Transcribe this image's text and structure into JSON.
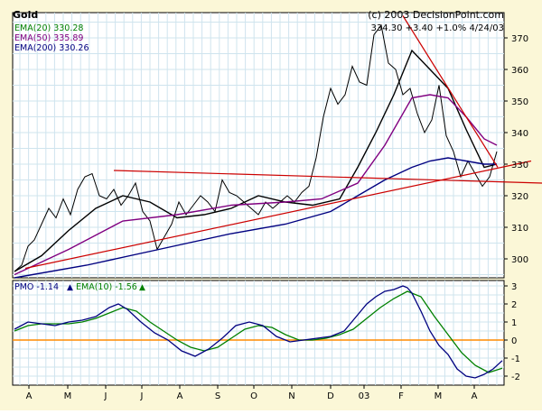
{
  "chart_data": [
    {
      "type": "line",
      "title": "Gold",
      "copyright": "(c) 2003 DecisionPoint.com",
      "quote": "334.30  +3.40  +1.0%  4/24/03",
      "legend": [
        "EMA(20) 330.28",
        "EMA(50) 335.89",
        "EMA(200) 330.26"
      ],
      "x_tick_labels": [
        "A",
        "M",
        "J",
        "J",
        "A",
        "S",
        "O",
        "N",
        "D",
        "03",
        "F",
        "M",
        "A"
      ],
      "y_ticks": [
        300,
        310,
        320,
        330,
        340,
        350,
        360,
        370
      ],
      "ylim": [
        294,
        378
      ],
      "series": [
        {
          "name": "Gold",
          "color": "#000000",
          "x": [
            0,
            8,
            15,
            22,
            30,
            38,
            46,
            54,
            62,
            70,
            78,
            86,
            94,
            102,
            110,
            118,
            126,
            134,
            142,
            150,
            158,
            166,
            174,
            182,
            190,
            198,
            206,
            214,
            222,
            230,
            238,
            246,
            254,
            262,
            270,
            278,
            286,
            294,
            302,
            310,
            318,
            326,
            334,
            342,
            350,
            358,
            366,
            374,
            382,
            390,
            398,
            406,
            414,
            422,
            430,
            438,
            446,
            454,
            462,
            470,
            478,
            486,
            494,
            502,
            510,
            518,
            526,
            534
          ],
          "values": [
            296,
            298,
            304,
            306,
            311,
            316,
            313,
            319,
            314,
            322,
            326,
            327,
            320,
            319,
            322,
            317,
            320,
            324,
            315,
            312,
            303,
            307,
            311,
            318,
            314,
            317,
            320,
            318,
            315,
            325,
            321,
            320,
            318,
            316,
            314,
            318,
            316,
            318,
            320,
            318,
            321,
            323,
            332,
            345,
            354,
            349,
            352,
            361,
            356,
            355,
            371,
            374,
            362,
            360,
            352,
            354,
            346,
            340,
            344,
            355,
            339,
            334,
            326,
            331,
            327,
            323,
            326,
            334
          ]
        },
        {
          "name": "EMA(20)",
          "color": "#000000",
          "x": [
            0,
            30,
            60,
            90,
            120,
            150,
            180,
            210,
            240,
            270,
            300,
            330,
            360,
            380,
            400,
            420,
            440,
            460,
            480,
            500,
            520,
            534
          ],
          "values": [
            296,
            301,
            309,
            316,
            320,
            318,
            313,
            314,
            316,
            320,
            318,
            317,
            319,
            329,
            340,
            352,
            366,
            360,
            354,
            341,
            329,
            330
          ]
        },
        {
          "name": "EMA(50)",
          "color": "#800080",
          "x": [
            0,
            60,
            120,
            180,
            240,
            300,
            340,
            380,
            410,
            440,
            460,
            480,
            500,
            520,
            534
          ],
          "values": [
            295,
            303,
            312,
            314,
            317,
            318,
            319,
            324,
            336,
            351,
            352,
            351,
            345,
            338,
            336
          ]
        },
        {
          "name": "EMA(200)",
          "color": "#000080",
          "x": [
            0,
            80,
            160,
            240,
            300,
            350,
            380,
            410,
            440,
            460,
            480,
            500,
            520,
            534
          ],
          "values": [
            294,
            298,
            303,
            308,
            311,
            315,
            320,
            325,
            329,
            331,
            332,
            331,
            330,
            330
          ]
        },
        {
          "name": "Trend 1",
          "color": "#cc0000",
          "x": [
            12,
            572
          ],
          "values": [
            297,
            331
          ]
        },
        {
          "name": "Trend 2",
          "color": "#cc0000",
          "x": [
            110,
            585
          ],
          "values": [
            328,
            324
          ]
        },
        {
          "name": "Trend 3",
          "color": "#cc0000",
          "x": [
            430,
            535
          ],
          "values": [
            377,
            329
          ]
        }
      ]
    },
    {
      "type": "line",
      "legend": [
        {
          "text": "PMO  -1.14",
          "arrow": "▲",
          "color": "#000080",
          "arrow_color": "#000080"
        },
        {
          "text": "EMA(10)  -1.56",
          "arrow": "▲",
          "color": "#008000",
          "arrow_color": "#008000"
        }
      ],
      "y_ticks": [
        -2,
        -1,
        0,
        1,
        2,
        3
      ],
      "ylim": [
        -2.5,
        3.3
      ],
      "zero_line_color": "#ff8c00",
      "series": [
        {
          "name": "PMO",
          "color": "#000080",
          "x": [
            0,
            15,
            30,
            45,
            60,
            75,
            90,
            105,
            115,
            125,
            140,
            155,
            170,
            185,
            200,
            215,
            230,
            245,
            260,
            275,
            290,
            305,
            320,
            335,
            350,
            365,
            380,
            390,
            400,
            410,
            420,
            430,
            435,
            440,
            450,
            460,
            470,
            480,
            490,
            500,
            510,
            520,
            530,
            540
          ],
          "values": [
            0.6,
            1.0,
            0.9,
            0.8,
            1.0,
            1.1,
            1.3,
            1.8,
            2.0,
            1.7,
            1.0,
            0.4,
            0.0,
            -0.6,
            -0.9,
            -0.5,
            0.1,
            0.8,
            1.0,
            0.8,
            0.2,
            -0.1,
            0.0,
            0.1,
            0.2,
            0.5,
            1.4,
            2.0,
            2.4,
            2.7,
            2.8,
            3.0,
            2.9,
            2.6,
            1.6,
            0.5,
            -0.3,
            -0.8,
            -1.6,
            -2.0,
            -2.1,
            -1.9,
            -1.6,
            -1.14
          ]
        },
        {
          "name": "EMA(10)",
          "color": "#008000",
          "x": [
            0,
            15,
            30,
            45,
            60,
            75,
            90,
            105,
            120,
            135,
            150,
            165,
            180,
            195,
            210,
            225,
            240,
            255,
            270,
            285,
            300,
            315,
            330,
            345,
            360,
            375,
            390,
            405,
            420,
            435,
            450,
            465,
            480,
            495,
            510,
            525,
            540
          ],
          "values": [
            0.5,
            0.8,
            0.9,
            0.9,
            0.9,
            1.0,
            1.2,
            1.5,
            1.8,
            1.6,
            1.0,
            0.5,
            0.0,
            -0.4,
            -0.6,
            -0.4,
            0.1,
            0.6,
            0.8,
            0.7,
            0.3,
            0.0,
            0.0,
            0.1,
            0.3,
            0.6,
            1.2,
            1.8,
            2.3,
            2.7,
            2.4,
            1.3,
            0.3,
            -0.7,
            -1.4,
            -1.8,
            -1.56
          ]
        }
      ]
    }
  ]
}
